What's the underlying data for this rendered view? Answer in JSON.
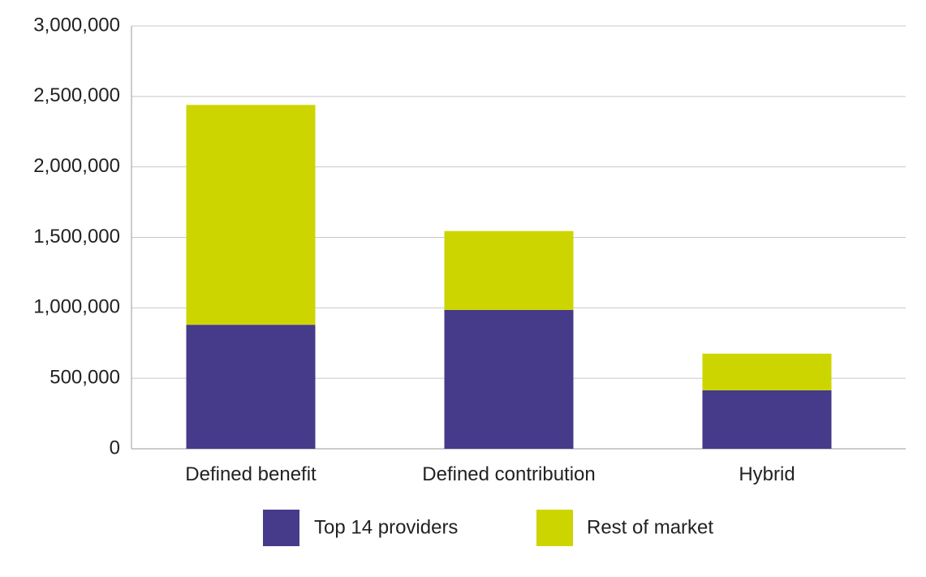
{
  "chart_data": {
    "type": "bar",
    "stacked": true,
    "categories": [
      "Defined benefit",
      "Defined contribution",
      "Hybrid"
    ],
    "series": [
      {
        "name": "Top 14 providers",
        "color": "#463a8a",
        "values": [
          880000,
          985000,
          415000
        ]
      },
      {
        "name": "Rest of market",
        "color": "#cdd500",
        "values": [
          1560000,
          560000,
          260000
        ]
      }
    ],
    "ylim": [
      0,
      3000000
    ],
    "yticks": [
      0,
      500000,
      1000000,
      1500000,
      2000000,
      2500000,
      3000000
    ],
    "ytick_labels": [
      "0",
      "500,000",
      "1,000,000",
      "1,500,000",
      "2,000,000",
      "2,500,000",
      "3,000,000"
    ],
    "grid": true,
    "legend_position": "bottom-center",
    "title": "",
    "xlabel": "",
    "ylabel": ""
  }
}
